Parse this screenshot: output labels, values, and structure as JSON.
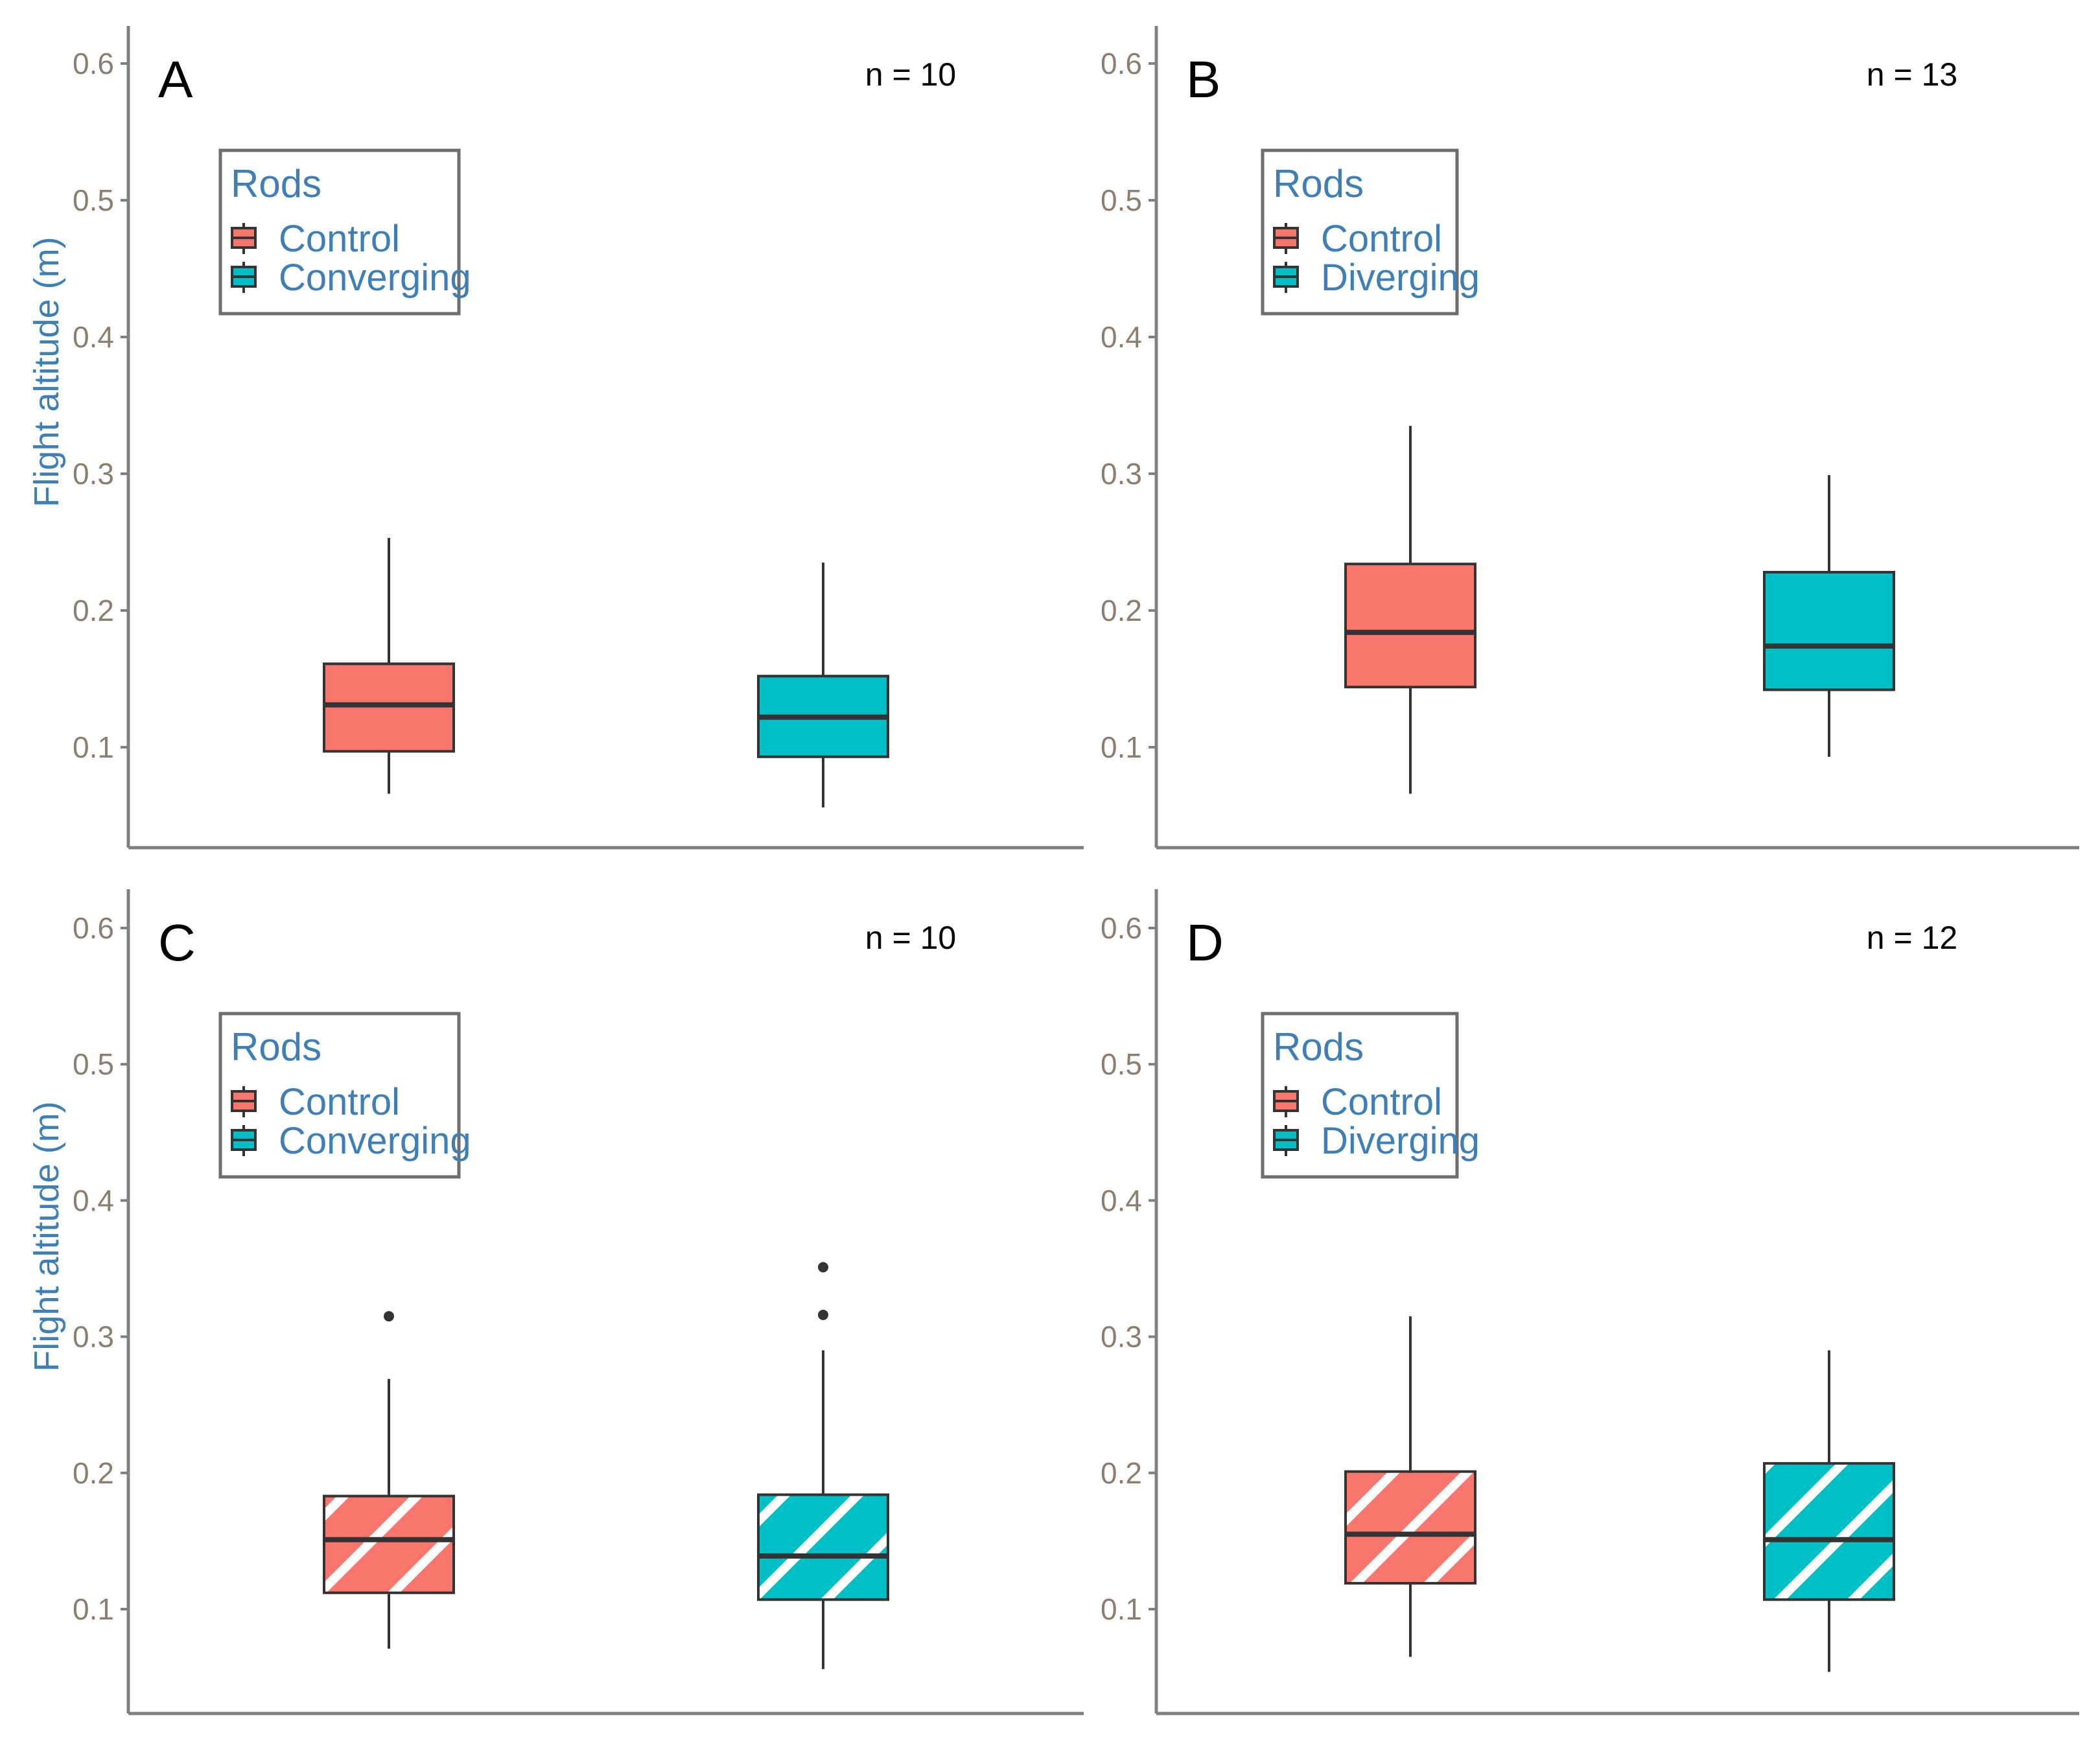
{
  "figure": {
    "ylabel": "Flight altitude (m)",
    "legend_title": "Rods"
  },
  "colors": {
    "control": "#f8766d",
    "treatment": "#00bfc4",
    "axis": "#808080",
    "box_stroke": "#333333",
    "tick_text": "#8a7f70",
    "legend_text": "#3f7fb5"
  },
  "chart_data": [
    {
      "type": "box",
      "panel": "A",
      "n_label": "n = 10",
      "ylim": [
        0.02,
        0.62
      ],
      "yticks": [
        "0.1",
        "0.2",
        "0.3",
        "0.4",
        "0.5",
        "0.6"
      ],
      "show_ylabel": true,
      "hatched": false,
      "legend": [
        "Control",
        "Converging"
      ],
      "legend_placement": "top-left",
      "series": [
        {
          "name": "Control",
          "min": 0.066,
          "q1": 0.097,
          "median": 0.131,
          "q3": 0.161,
          "max": 0.253,
          "outliers": []
        },
        {
          "name": "Converging",
          "min": 0.056,
          "q1": 0.093,
          "median": 0.122,
          "q3": 0.152,
          "max": 0.235,
          "outliers": []
        }
      ]
    },
    {
      "type": "box",
      "panel": "B",
      "n_label": "n = 13",
      "ylim": [
        0.02,
        0.62
      ],
      "yticks": [
        "0.1",
        "0.2",
        "0.3",
        "0.4",
        "0.5",
        "0.6"
      ],
      "show_ylabel": false,
      "hatched": false,
      "legend": [
        "Control",
        "Diverging"
      ],
      "legend_placement": "top-left",
      "series": [
        {
          "name": "Control",
          "min": 0.066,
          "q1": 0.144,
          "median": 0.184,
          "q3": 0.234,
          "max": 0.335,
          "outliers": []
        },
        {
          "name": "Diverging",
          "min": 0.093,
          "q1": 0.142,
          "median": 0.174,
          "q3": 0.228,
          "max": 0.299,
          "outliers": []
        }
      ]
    },
    {
      "type": "box",
      "panel": "C",
      "n_label": "n = 10",
      "ylim": [
        0.02,
        0.62
      ],
      "yticks": [
        "0.1",
        "0.2",
        "0.3",
        "0.4",
        "0.5",
        "0.6"
      ],
      "show_ylabel": true,
      "hatched": true,
      "legend": [
        "Control",
        "Converging"
      ],
      "legend_placement": "top-left",
      "series": [
        {
          "name": "Control",
          "min": 0.071,
          "q1": 0.112,
          "median": 0.151,
          "q3": 0.183,
          "max": 0.269,
          "outliers": [
            0.315
          ]
        },
        {
          "name": "Converging",
          "min": 0.056,
          "q1": 0.107,
          "median": 0.139,
          "q3": 0.184,
          "max": 0.29,
          "outliers": [
            0.316,
            0.351
          ]
        }
      ]
    },
    {
      "type": "box",
      "panel": "D",
      "n_label": "n = 12",
      "ylim": [
        0.02,
        0.62
      ],
      "yticks": [
        "0.1",
        "0.2",
        "0.3",
        "0.4",
        "0.5",
        "0.6"
      ],
      "show_ylabel": false,
      "hatched": true,
      "legend": [
        "Control",
        "Diverging"
      ],
      "legend_placement": "top-left",
      "series": [
        {
          "name": "Control",
          "min": 0.065,
          "q1": 0.119,
          "median": 0.155,
          "q3": 0.201,
          "max": 0.315,
          "outliers": []
        },
        {
          "name": "Diverging",
          "min": 0.054,
          "q1": 0.107,
          "median": 0.151,
          "q3": 0.207,
          "max": 0.29,
          "outliers": []
        }
      ]
    }
  ]
}
